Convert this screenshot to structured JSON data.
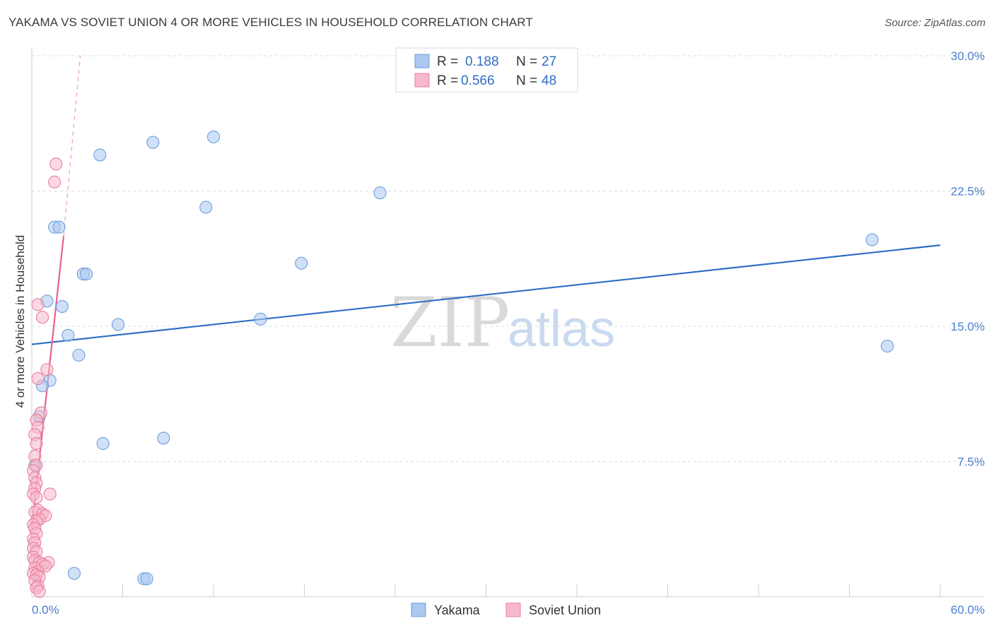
{
  "header": {
    "title": "YAKAMA VS SOVIET UNION 4 OR MORE VEHICLES IN HOUSEHOLD CORRELATION CHART",
    "source": "Source: ZipAtlas.com"
  },
  "watermark": {
    "zip": "ZIP",
    "atlas": "atlas"
  },
  "legend": {
    "rows": [
      {
        "r_label": "R =",
        "r_value": "0.188",
        "n_label": "N =",
        "n_value": "27",
        "color": "#aac8f0",
        "stroke": "#6e9fdc"
      },
      {
        "r_label": "R =",
        "r_value": "0.566",
        "n_label": "N =",
        "n_value": "48",
        "color": "#f7b8cb",
        "stroke": "#e87fa0"
      }
    ]
  },
  "bottom_legend": [
    {
      "label": "Yakama",
      "color": "#aac8f0",
      "stroke": "#6e9fdc"
    },
    {
      "label": "Soviet Union",
      "color": "#f7b8cb",
      "stroke": "#e87fa0"
    }
  ],
  "chart_data": {
    "type": "scatter",
    "title": "YAKAMA VS SOVIET UNION 4 OR MORE VEHICLES IN HOUSEHOLD CORRELATION CHART",
    "xlabel": "",
    "ylabel": "4 or more Vehicles in Household",
    "xlim": [
      0,
      60
    ],
    "ylim": [
      0,
      30
    ],
    "y_ticks": [
      7.5,
      15.0,
      22.5,
      30.0
    ],
    "y_tick_labels": [
      "7.5%",
      "15.0%",
      "22.5%",
      "30.0%"
    ],
    "x_tick_labels": [
      "0.0%",
      "60.0%"
    ],
    "grid": true,
    "legend_position": "top-center",
    "series": [
      {
        "name": "Yakama",
        "color": "#6e9fdc",
        "fill": "#aac8f0",
        "points": [
          [
            4.5,
            24.5
          ],
          [
            8.0,
            25.2
          ],
          [
            12.0,
            25.5
          ],
          [
            23.0,
            22.4
          ],
          [
            11.5,
            21.6
          ],
          [
            1.5,
            20.5
          ],
          [
            1.8,
            20.5
          ],
          [
            17.8,
            18.5
          ],
          [
            3.4,
            17.9
          ],
          [
            3.6,
            17.9
          ],
          [
            1.0,
            16.4
          ],
          [
            2.0,
            16.1
          ],
          [
            15.1,
            15.4
          ],
          [
            5.7,
            15.1
          ],
          [
            2.4,
            14.5
          ],
          [
            3.1,
            13.4
          ],
          [
            1.2,
            12.0
          ],
          [
            0.7,
            11.7
          ],
          [
            0.5,
            10.0
          ],
          [
            4.7,
            8.5
          ],
          [
            8.7,
            8.8
          ],
          [
            0.2,
            7.3
          ],
          [
            55.5,
            19.8
          ],
          [
            56.5,
            13.9
          ],
          [
            2.8,
            1.3
          ],
          [
            7.4,
            1.0
          ],
          [
            7.6,
            1.0
          ]
        ],
        "trend": {
          "x": [
            0,
            60
          ],
          "y": [
            14.0,
            19.5
          ]
        }
      },
      {
        "name": "Soviet Union",
        "color": "#e87fa0",
        "fill": "#f7b8cb",
        "points": [
          [
            1.6,
            24.0
          ],
          [
            1.5,
            23.0
          ],
          [
            0.4,
            16.2
          ],
          [
            0.7,
            15.5
          ],
          [
            1.0,
            12.6
          ],
          [
            0.4,
            12.1
          ],
          [
            0.6,
            10.2
          ],
          [
            0.3,
            9.8
          ],
          [
            0.4,
            9.4
          ],
          [
            0.2,
            9.0
          ],
          [
            0.3,
            8.5
          ],
          [
            0.2,
            7.8
          ],
          [
            0.3,
            7.3
          ],
          [
            0.1,
            7.0
          ],
          [
            0.2,
            6.6
          ],
          [
            0.3,
            6.3
          ],
          [
            0.2,
            6.0
          ],
          [
            0.1,
            5.7
          ],
          [
            0.3,
            5.5
          ],
          [
            1.2,
            5.7
          ],
          [
            0.4,
            4.8
          ],
          [
            0.2,
            4.7
          ],
          [
            0.7,
            4.6
          ],
          [
            0.9,
            4.5
          ],
          [
            0.5,
            4.3
          ],
          [
            0.3,
            4.2
          ],
          [
            0.1,
            4.0
          ],
          [
            0.2,
            3.8
          ],
          [
            0.3,
            3.5
          ],
          [
            0.1,
            3.2
          ],
          [
            0.2,
            3.0
          ],
          [
            0.1,
            2.7
          ],
          [
            0.3,
            2.5
          ],
          [
            0.1,
            2.2
          ],
          [
            0.2,
            2.0
          ],
          [
            0.5,
            1.9
          ],
          [
            1.1,
            1.9
          ],
          [
            0.7,
            1.8
          ],
          [
            0.9,
            1.7
          ],
          [
            0.2,
            1.6
          ],
          [
            0.4,
            1.4
          ],
          [
            0.1,
            1.3
          ],
          [
            0.3,
            1.2
          ],
          [
            0.5,
            1.1
          ],
          [
            0.2,
            0.9
          ],
          [
            0.4,
            0.6
          ],
          [
            0.3,
            0.5
          ],
          [
            0.5,
            0.3
          ]
        ],
        "trend": {
          "x": [
            0,
            2.1
          ],
          "y": [
            3.8,
            20.0
          ]
        },
        "trend_extension": {
          "x": [
            2.1,
            3.2
          ],
          "y": [
            20.0,
            30.0
          ]
        }
      }
    ]
  }
}
